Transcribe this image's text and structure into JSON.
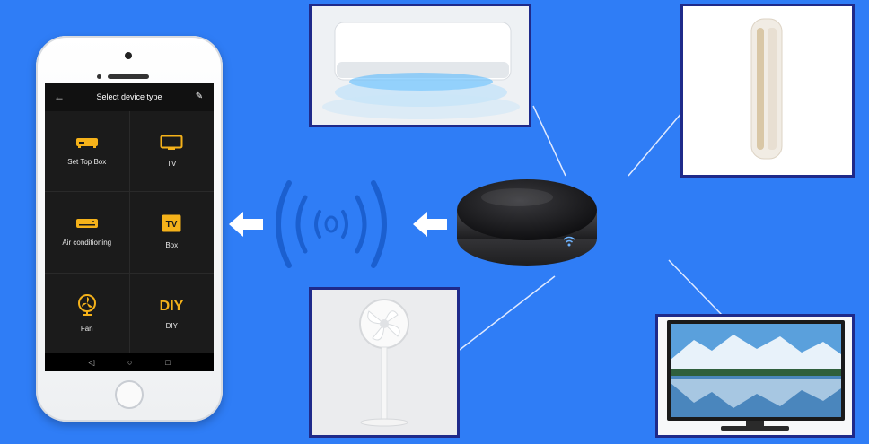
{
  "app": {
    "title": "Select device type",
    "back_icon": "arrow-left-icon",
    "edit_icon": "pencil-icon",
    "devices": [
      {
        "label": "Set Top Box",
        "icon": "set-top-box-icon"
      },
      {
        "label": "TV",
        "icon": "tv-icon"
      },
      {
        "label": "Air conditioning",
        "icon": "air-conditioner-icon"
      },
      {
        "label": "Box",
        "icon": "tv-box-icon"
      },
      {
        "label": "Fan",
        "icon": "fan-icon"
      },
      {
        "label": "DIY",
        "icon": "diy-icon"
      }
    ],
    "nav": {
      "back": "◁",
      "home": "○",
      "recent": "□"
    }
  },
  "colors": {
    "background": "#2f7df6",
    "accent": "#f5b21a",
    "frame_border": "#1f2a8a",
    "hub_body": "#1d1d1f"
  },
  "badges": {
    "tv_box_text": "TV",
    "diy_text": "DIY"
  },
  "appliances": [
    "air-conditioner-photo",
    "tower-air-conditioner-photo",
    "standing-fan-photo",
    "television-photo"
  ]
}
